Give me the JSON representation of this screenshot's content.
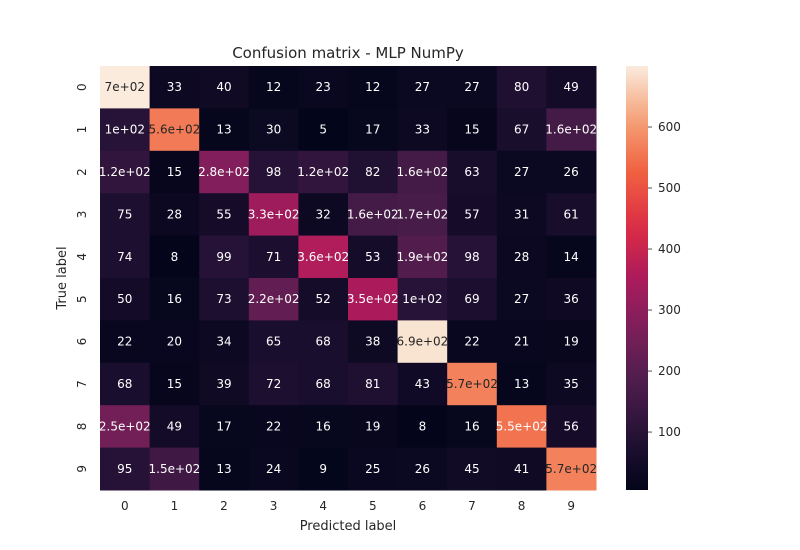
{
  "chart_data": {
    "type": "heatmap",
    "title": "Confusion matrix - MLP NumPy",
    "xlabel": "Predicted label",
    "ylabel": "True label",
    "x_categories": [
      "0",
      "1",
      "2",
      "3",
      "4",
      "5",
      "6",
      "7",
      "8",
      "9"
    ],
    "y_categories": [
      "0",
      "1",
      "2",
      "3",
      "4",
      "5",
      "6",
      "7",
      "8",
      "9"
    ],
    "values": [
      [
        700,
        33,
        40,
        12,
        23,
        12,
        27,
        27,
        80,
        49
      ],
      [
        100,
        560,
        13,
        30,
        5,
        17,
        33,
        15,
        67,
        160
      ],
      [
        120,
        15,
        280,
        98,
        120,
        82,
        160,
        63,
        27,
        26
      ],
      [
        75,
        28,
        55,
        330,
        32,
        160,
        170,
        57,
        31,
        61
      ],
      [
        74,
        8,
        99,
        71,
        360,
        53,
        190,
        98,
        28,
        14
      ],
      [
        50,
        16,
        73,
        220,
        52,
        350,
        100,
        69,
        27,
        36
      ],
      [
        22,
        20,
        34,
        65,
        68,
        38,
        690,
        22,
        21,
        19
      ],
      [
        68,
        15,
        39,
        72,
        68,
        81,
        43,
        570,
        13,
        35
      ],
      [
        250,
        49,
        17,
        22,
        16,
        19,
        8,
        16,
        550,
        56
      ],
      [
        95,
        150,
        13,
        24,
        9,
        25,
        26,
        45,
        41,
        570
      ]
    ],
    "cell_labels": [
      [
        "7e+02",
        "33",
        "40",
        "12",
        "23",
        "12",
        "27",
        "27",
        "80",
        "49"
      ],
      [
        "1e+02",
        "5.6e+02",
        "13",
        "30",
        "5",
        "17",
        "33",
        "15",
        "67",
        "1.6e+02"
      ],
      [
        "1.2e+02",
        "15",
        "2.8e+02",
        "98",
        "1.2e+02",
        "82",
        "1.6e+02",
        "63",
        "27",
        "26"
      ],
      [
        "75",
        "28",
        "55",
        "3.3e+02",
        "32",
        "1.6e+02",
        "1.7e+02",
        "57",
        "31",
        "61"
      ],
      [
        "74",
        "8",
        "99",
        "71",
        "3.6e+02",
        "53",
        "1.9e+02",
        "98",
        "28",
        "14"
      ],
      [
        "50",
        "16",
        "73",
        "2.2e+02",
        "52",
        "3.5e+02",
        "1e+02",
        "69",
        "27",
        "36"
      ],
      [
        "22",
        "20",
        "34",
        "65",
        "68",
        "38",
        "6.9e+02",
        "22",
        "21",
        "19"
      ],
      [
        "68",
        "15",
        "39",
        "72",
        "68",
        "81",
        "43",
        "5.7e+02",
        "13",
        "35"
      ],
      [
        "2.5e+02",
        "49",
        "17",
        "22",
        "16",
        "19",
        "8",
        "16",
        "5.5e+02",
        "56"
      ],
      [
        "95",
        "1.5e+02",
        "13",
        "24",
        "9",
        "25",
        "26",
        "45",
        "41",
        "5.7e+02"
      ]
    ],
    "vmin": 5,
    "vmax": 700,
    "colormap": "rocket",
    "colorbar_ticks": [
      100,
      200,
      300,
      400,
      500,
      600
    ],
    "colorbar_tick_labels": [
      "100",
      "200",
      "300",
      "400",
      "500",
      "600"
    ],
    "grid": false
  }
}
